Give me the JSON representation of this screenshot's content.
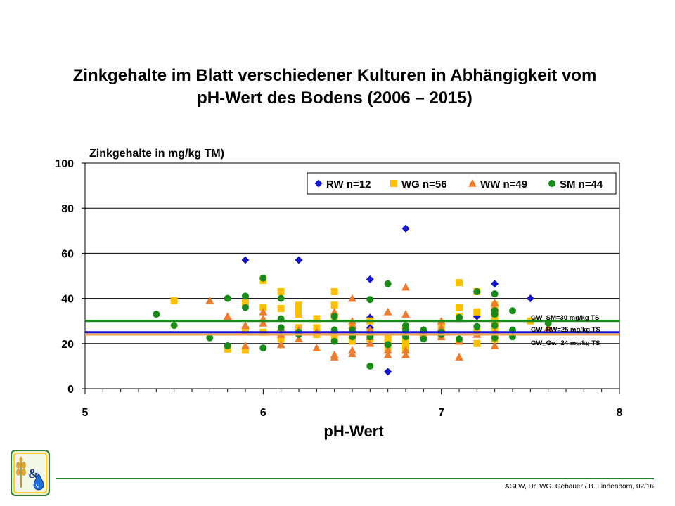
{
  "title_lines": [
    "Zinkgehalte im Blatt verschiedener Kulturen in Abhängigkeit vom",
    "pH-Wert des Bodens (2006 – 2015)"
  ],
  "credit": "AGLW, Dr. WG. Gebauer / B. Lindenborn, 02/16",
  "logo": {
    "symbol": "&",
    "icons": [
      "wheat-icon",
      "water-drop-icon"
    ]
  },
  "chart_data": {
    "type": "scatter",
    "ylabel": "Zinkgehalte in mg/kg TM)",
    "xlabel": "pH-Wert",
    "xlim": [
      5,
      8
    ],
    "ylim": [
      0,
      100
    ],
    "x_ticks": [
      "5",
      "6",
      "7",
      "8"
    ],
    "y_ticks": [
      "0",
      "20",
      "40",
      "60",
      "80",
      "100"
    ],
    "x_minor_step": 0.1,
    "grid": "horizontal major",
    "legend_position": "top-right",
    "series": [
      {
        "name": "RW n=12",
        "marker": "diamond",
        "color": "#1515cc",
        "points": [
          [
            5.9,
            57
          ],
          [
            6.2,
            57
          ],
          [
            6.6,
            48.5
          ],
          [
            6.6,
            31.5
          ],
          [
            6.8,
            71
          ],
          [
            6.7,
            7.5
          ],
          [
            7.3,
            46.5
          ],
          [
            7.5,
            40
          ],
          [
            7.2,
            32
          ],
          [
            6.6,
            27
          ],
          [
            6.2,
            25
          ],
          [
            6.8,
            24
          ]
        ]
      },
      {
        "name": "WG n=56",
        "marker": "square",
        "color": "#ffc000",
        "points": [
          [
            5.5,
            39
          ],
          [
            5.8,
            17.5
          ],
          [
            5.9,
            17
          ],
          [
            5.9,
            38
          ],
          [
            6.0,
            48
          ],
          [
            6.0,
            36
          ],
          [
            6.1,
            43
          ],
          [
            6.1,
            35.5
          ],
          [
            6.2,
            36
          ],
          [
            6.2,
            37
          ],
          [
            6.2,
            33
          ],
          [
            6.2,
            27
          ],
          [
            6.3,
            31
          ],
          [
            6.3,
            27
          ],
          [
            6.4,
            43
          ],
          [
            6.4,
            37
          ],
          [
            6.4,
            32
          ],
          [
            6.5,
            27
          ],
          [
            6.5,
            21
          ],
          [
            6.5,
            24
          ],
          [
            6.6,
            30
          ],
          [
            6.6,
            22
          ],
          [
            6.6,
            25
          ],
          [
            6.7,
            20
          ],
          [
            6.7,
            18
          ],
          [
            6.8,
            26
          ],
          [
            6.8,
            21
          ],
          [
            6.8,
            18
          ],
          [
            6.9,
            25
          ],
          [
            7.0,
            29
          ],
          [
            7.0,
            25
          ],
          [
            7.0,
            23
          ],
          [
            7.1,
            47
          ],
          [
            7.1,
            36
          ],
          [
            7.1,
            32
          ],
          [
            7.1,
            21
          ],
          [
            7.2,
            43
          ],
          [
            7.2,
            34
          ],
          [
            7.2,
            25
          ],
          [
            7.2,
            20
          ],
          [
            7.3,
            37
          ],
          [
            7.3,
            33
          ],
          [
            7.3,
            30
          ],
          [
            7.3,
            26
          ],
          [
            7.3,
            22
          ],
          [
            7.5,
            30
          ],
          [
            6.1,
            22
          ],
          [
            6.3,
            24
          ],
          [
            6.5,
            26
          ],
          [
            6.9,
            23
          ],
          [
            5.9,
            26
          ],
          [
            6.0,
            25
          ],
          [
            6.4,
            22
          ],
          [
            6.7,
            22
          ],
          [
            7.0,
            26
          ],
          [
            7.3,
            28
          ]
        ]
      },
      {
        "name": "WW n=49",
        "marker": "triangle",
        "color": "#ed7d31",
        "points": [
          [
            5.7,
            39
          ],
          [
            5.8,
            32
          ],
          [
            5.9,
            28
          ],
          [
            5.9,
            19
          ],
          [
            6.0,
            34
          ],
          [
            6.0,
            29
          ],
          [
            6.0,
            31
          ],
          [
            6.1,
            24
          ],
          [
            6.1,
            19.5
          ],
          [
            6.1,
            27
          ],
          [
            6.2,
            22
          ],
          [
            6.3,
            18
          ],
          [
            6.4,
            34
          ],
          [
            6.4,
            26
          ],
          [
            6.4,
            15
          ],
          [
            6.4,
            14
          ],
          [
            6.5,
            40
          ],
          [
            6.5,
            30
          ],
          [
            6.5,
            28
          ],
          [
            6.5,
            17
          ],
          [
            6.5,
            15.5
          ],
          [
            6.6,
            26
          ],
          [
            6.6,
            20
          ],
          [
            6.6,
            23
          ],
          [
            6.7,
            34
          ],
          [
            6.7,
            15
          ],
          [
            6.7,
            17
          ],
          [
            6.8,
            45
          ],
          [
            6.8,
            33
          ],
          [
            6.8,
            28
          ],
          [
            6.8,
            17
          ],
          [
            6.8,
            15
          ],
          [
            6.9,
            24
          ],
          [
            7.0,
            30
          ],
          [
            7.0,
            27
          ],
          [
            7.0,
            23
          ],
          [
            7.1,
            21
          ],
          [
            7.1,
            14
          ],
          [
            7.1,
            31
          ],
          [
            7.2,
            24
          ],
          [
            7.3,
            38
          ],
          [
            7.3,
            36
          ],
          [
            7.3,
            19
          ],
          [
            7.3,
            25
          ],
          [
            7.6,
            27
          ],
          [
            6.2,
            26
          ],
          [
            6.5,
            24
          ],
          [
            6.9,
            26
          ],
          [
            6.3,
            25
          ]
        ]
      },
      {
        "name": "SM n=44",
        "marker": "circle",
        "color": "#1a8a1a",
        "points": [
          [
            5.4,
            33
          ],
          [
            5.5,
            28
          ],
          [
            5.7,
            22.5
          ],
          [
            5.8,
            40
          ],
          [
            5.8,
            19
          ],
          [
            5.9,
            41
          ],
          [
            5.9,
            36
          ],
          [
            6.0,
            49
          ],
          [
            6.0,
            18
          ],
          [
            6.1,
            40
          ],
          [
            6.1,
            31
          ],
          [
            6.1,
            27
          ],
          [
            6.2,
            25
          ],
          [
            6.4,
            32
          ],
          [
            6.4,
            21
          ],
          [
            6.5,
            26
          ],
          [
            6.6,
            39.5
          ],
          [
            6.6,
            10
          ],
          [
            6.7,
            46.5
          ],
          [
            6.7,
            19.5
          ],
          [
            6.8,
            28
          ],
          [
            6.8,
            26
          ],
          [
            6.9,
            26
          ],
          [
            6.9,
            22
          ],
          [
            7.0,
            25
          ],
          [
            7.1,
            31.5
          ],
          [
            7.1,
            22
          ],
          [
            7.2,
            43
          ],
          [
            7.2,
            27.5
          ],
          [
            7.3,
            42
          ],
          [
            7.3,
            34.5
          ],
          [
            7.3,
            33
          ],
          [
            7.3,
            28
          ],
          [
            7.3,
            22.5
          ],
          [
            7.4,
            34.5
          ],
          [
            7.4,
            26
          ],
          [
            7.4,
            23
          ],
          [
            7.6,
            29
          ],
          [
            6.6,
            23
          ],
          [
            6.4,
            26
          ],
          [
            6.2,
            24
          ],
          [
            6.8,
            23
          ],
          [
            7.0,
            24
          ],
          [
            6.5,
            23
          ]
        ]
      }
    ],
    "reference_lines": [
      {
        "label": "GW_SM=30 mg/kg TS",
        "y": 30,
        "color": "#1a8a1a"
      },
      {
        "label": "GW_RW=25 mg/kg TS",
        "y": 25,
        "color": "#1515cc"
      },
      {
        "label": "GW_Ge.=24 mg/kg TS",
        "y": 24,
        "color": "#f4a460"
      }
    ]
  }
}
